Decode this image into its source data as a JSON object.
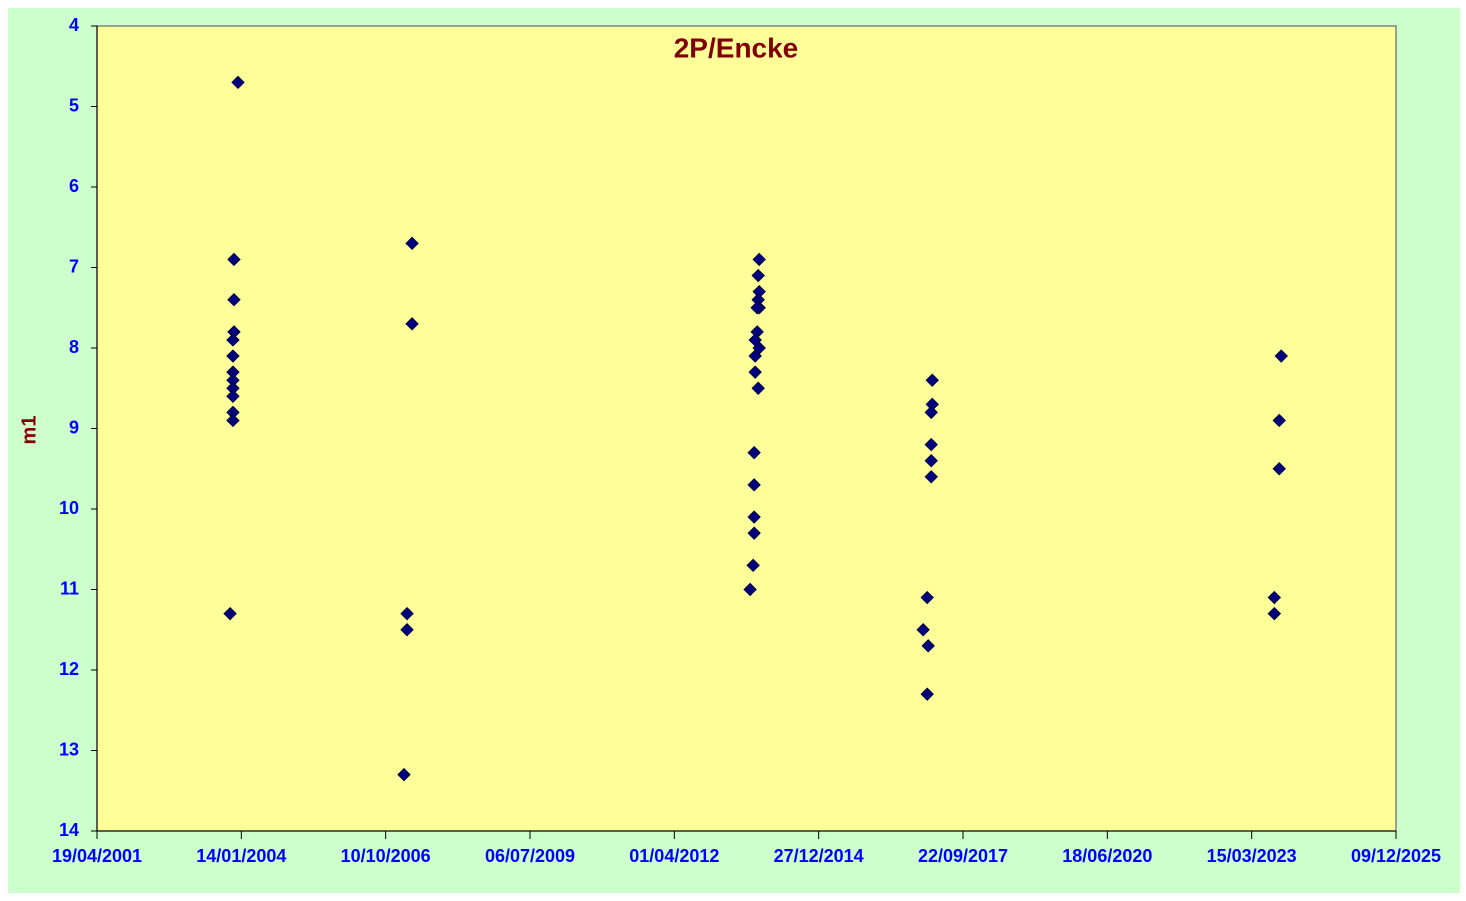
{
  "chart_data": {
    "type": "scatter",
    "title": "2P/Encke",
    "y_label": "m1",
    "x": [
      "22/12/2003",
      "24/11/2003",
      "24/11/2003",
      "24/11/2003",
      "17/11/2003",
      "17/11/2003",
      "17/11/2003",
      "17/11/2003",
      "17/11/2003",
      "17/11/2003",
      "17/11/2003",
      "17/11/2003",
      "28/10/2003",
      "11/04/2007",
      "11/04/2007",
      "07/03/2007",
      "07/03/2007",
      "14/02/2007",
      "10/11/2013",
      "03/11/2013",
      "10/11/2013",
      "03/11/2013",
      "10/11/2013",
      "27/10/2013",
      "27/10/2013",
      "13/10/2013",
      "10/11/2013",
      "13/10/2013",
      "13/10/2013",
      "03/11/2013",
      "06/10/2013",
      "06/10/2013",
      "06/10/2013",
      "06/10/2013",
      "29/09/2013",
      "08/09/2013",
      "21/02/2017",
      "21/02/2017",
      "14/02/2017",
      "14/02/2017",
      "14/02/2017",
      "14/02/2017",
      "17/01/2017",
      "20/12/2016",
      "24/01/2017",
      "17/01/2017",
      "06/10/2023",
      "22/09/2023",
      "22/09/2023",
      "19/08/2023",
      "19/08/2023"
    ],
    "values": [
      4.7,
      6.9,
      7.4,
      7.8,
      7.9,
      8.1,
      8.3,
      8.4,
      8.5,
      8.6,
      8.8,
      8.9,
      11.3,
      6.7,
      7.7,
      11.3,
      11.5,
      13.3,
      6.9,
      7.1,
      7.3,
      7.4,
      7.5,
      7.5,
      7.8,
      7.9,
      8.0,
      8.1,
      8.3,
      8.5,
      9.3,
      9.7,
      10.1,
      10.3,
      10.7,
      11.0,
      8.4,
      8.7,
      8.8,
      9.2,
      9.4,
      9.6,
      11.1,
      11.5,
      11.7,
      12.3,
      8.1,
      8.9,
      9.5,
      11.1,
      11.3
    ],
    "color": "#000080",
    "xlim": [
      "19/04/2001",
      "09/12/2025"
    ],
    "xticks": [
      "19/04/2001",
      "14/01/2004",
      "10/10/2006",
      "06/07/2009",
      "01/04/2012",
      "27/12/2014",
      "22/09/2017",
      "18/06/2020",
      "15/03/2023",
      "09/12/2025"
    ],
    "ylim": [
      4,
      14
    ],
    "yticks": [
      4,
      5,
      6,
      7,
      8,
      9,
      10,
      11,
      12,
      13,
      14
    ],
    "y_reversed": true
  }
}
